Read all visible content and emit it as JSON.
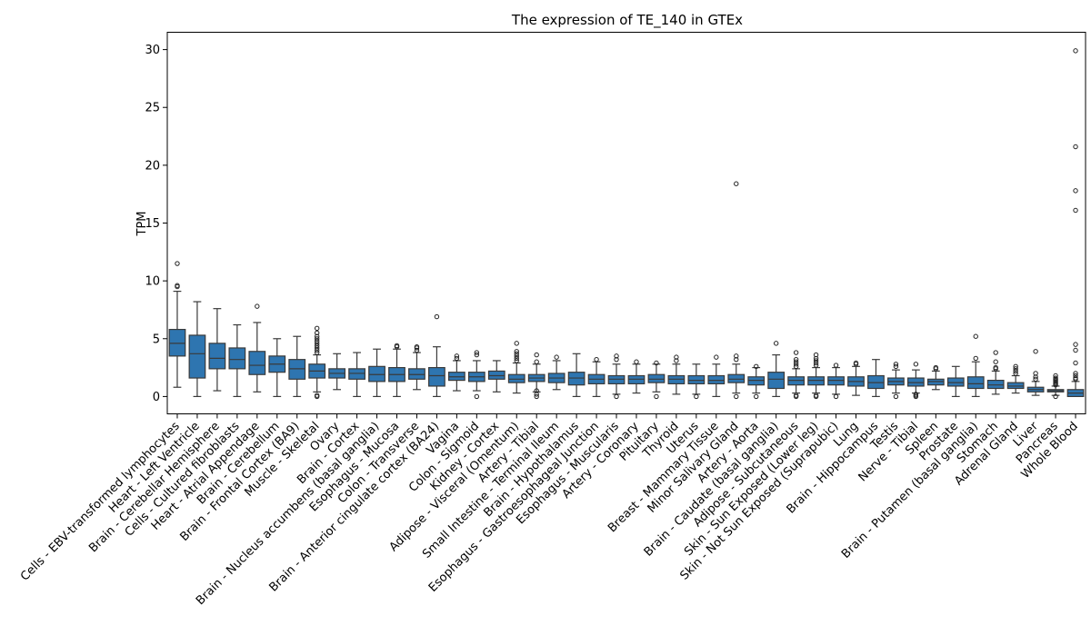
{
  "chart_data": {
    "type": "box",
    "title": "The expression of TE_140 in GTEx",
    "xlabel": "",
    "ylabel": "TPM",
    "ylim": [
      -1.5,
      31.5
    ],
    "yticks": [
      0,
      5,
      10,
      15,
      20,
      25,
      30
    ],
    "box_color": "#2e75b0",
    "grid": false,
    "categories": [
      "Cells - EBV-transformed lymphocytes",
      "Heart - Left Ventricle",
      "Brain - Cerebellar Hemisphere",
      "Cells - Cultured fibroblasts",
      "Heart - Atrial Appendage",
      "Brain - Cerebellum",
      "Brain - Frontal Cortex (BA9)",
      "Muscle - Skeletal",
      "Ovary",
      "Brain - Cortex",
      "Brain - Nucleus accumbens (basal ganglia)",
      "Esophagus - Mucosa",
      "Colon - Transverse",
      "Brain - Anterior cingulate cortex (BA24)",
      "Vagina",
      "Colon - Sigmoid",
      "Kidney - Cortex",
      "Adipose - Visceral (Omentum)",
      "Artery - Tibial",
      "Small Intestine - Terminal Ileum",
      "Brain - Hypothalamus",
      "Esophagus - Gastroesophageal Junction",
      "Esophagus - Muscularis",
      "Artery - Coronary",
      "Pituitary",
      "Thyroid",
      "Uterus",
      "Breast - Mammary Tissue",
      "Minor Salivary Gland",
      "Artery - Aorta",
      "Brain - Caudate (basal ganglia)",
      "Adipose - Subcutaneous",
      "Skin - Sun Exposed (Lower leg)",
      "Skin - Not Sun Exposed (Suprapubic)",
      "Lung",
      "Brain - Hippocampus",
      "Testis",
      "Nerve - Tibial",
      "Spleen",
      "Prostate",
      "Brain - Putamen (basal ganglia)",
      "Stomach",
      "Adrenal Gland",
      "Liver",
      "Pancreas",
      "Whole Blood"
    ],
    "boxes": [
      {
        "low": 0.8,
        "q1": 3.5,
        "median": 4.6,
        "q3": 5.8,
        "high": 9.1,
        "outliers": [
          9.5,
          9.6,
          11.5
        ]
      },
      {
        "low": 0.0,
        "q1": 1.6,
        "median": 3.7,
        "q3": 5.3,
        "high": 8.2,
        "outliers": []
      },
      {
        "low": 0.5,
        "q1": 2.4,
        "median": 3.3,
        "q3": 4.6,
        "high": 7.6,
        "outliers": []
      },
      {
        "low": 0.0,
        "q1": 2.4,
        "median": 3.2,
        "q3": 4.2,
        "high": 6.2,
        "outliers": []
      },
      {
        "low": 0.4,
        "q1": 1.9,
        "median": 2.7,
        "q3": 3.9,
        "high": 6.4,
        "outliers": [
          7.8
        ]
      },
      {
        "low": 0.0,
        "q1": 2.1,
        "median": 2.8,
        "q3": 3.5,
        "high": 5.0,
        "outliers": []
      },
      {
        "low": 0.0,
        "q1": 1.5,
        "median": 2.4,
        "q3": 3.2,
        "high": 5.2,
        "outliers": []
      },
      {
        "low": 0.4,
        "q1": 1.6,
        "median": 2.2,
        "q3": 2.8,
        "high": 3.6,
        "outliers": [
          0.0,
          0.1,
          3.8,
          4.0,
          4.2,
          4.4,
          4.6,
          4.8,
          5.0,
          5.2,
          5.5,
          5.9
        ]
      },
      {
        "low": 0.6,
        "q1": 1.6,
        "median": 2.0,
        "q3": 2.4,
        "high": 3.7,
        "outliers": []
      },
      {
        "low": 0.0,
        "q1": 1.5,
        "median": 2.0,
        "q3": 2.4,
        "high": 3.8,
        "outliers": []
      },
      {
        "low": 0.0,
        "q1": 1.3,
        "median": 1.9,
        "q3": 2.6,
        "high": 4.1,
        "outliers": []
      },
      {
        "low": 0.0,
        "q1": 1.3,
        "median": 1.9,
        "q3": 2.5,
        "high": 4.1,
        "outliers": [
          4.3,
          4.4
        ]
      },
      {
        "low": 0.6,
        "q1": 1.5,
        "median": 1.9,
        "q3": 2.4,
        "high": 3.8,
        "outliers": [
          4.0,
          4.2,
          4.3
        ]
      },
      {
        "low": 0.0,
        "q1": 0.9,
        "median": 1.8,
        "q3": 2.5,
        "high": 4.3,
        "outliers": [
          6.9
        ]
      },
      {
        "low": 0.5,
        "q1": 1.4,
        "median": 1.7,
        "q3": 2.1,
        "high": 3.1,
        "outliers": [
          3.3,
          3.5
        ]
      },
      {
        "low": 0.5,
        "q1": 1.3,
        "median": 1.7,
        "q3": 2.1,
        "high": 3.1,
        "outliers": [
          0.0,
          3.6,
          3.8
        ]
      },
      {
        "low": 0.4,
        "q1": 1.5,
        "median": 1.8,
        "q3": 2.2,
        "high": 3.1,
        "outliers": []
      },
      {
        "low": 0.3,
        "q1": 1.2,
        "median": 1.5,
        "q3": 1.9,
        "high": 2.9,
        "outliers": [
          3.1,
          3.3,
          3.5,
          3.7,
          3.9,
          4.6
        ]
      },
      {
        "low": 0.4,
        "q1": 1.3,
        "median": 1.6,
        "q3": 1.9,
        "high": 2.8,
        "outliers": [
          0.0,
          0.2,
          0.5,
          3.0,
          3.6
        ]
      },
      {
        "low": 0.6,
        "q1": 1.2,
        "median": 1.6,
        "q3": 2.0,
        "high": 3.1,
        "outliers": [
          3.4
        ]
      },
      {
        "low": 0.0,
        "q1": 1.0,
        "median": 1.6,
        "q3": 2.1,
        "high": 3.7,
        "outliers": []
      },
      {
        "low": 0.0,
        "q1": 1.1,
        "median": 1.5,
        "q3": 1.9,
        "high": 3.0,
        "outliers": [
          3.2
        ]
      },
      {
        "low": 0.2,
        "q1": 1.1,
        "median": 1.5,
        "q3": 1.8,
        "high": 2.8,
        "outliers": [
          0.0,
          3.2,
          3.5
        ]
      },
      {
        "low": 0.3,
        "q1": 1.1,
        "median": 1.5,
        "q3": 1.8,
        "high": 2.8,
        "outliers": [
          3.0
        ]
      },
      {
        "low": 0.4,
        "q1": 1.2,
        "median": 1.5,
        "q3": 1.9,
        "high": 2.8,
        "outliers": [
          0.0,
          2.9
        ]
      },
      {
        "low": 0.2,
        "q1": 1.1,
        "median": 1.5,
        "q3": 1.8,
        "high": 2.8,
        "outliers": [
          3.1,
          3.4
        ]
      },
      {
        "low": 0.2,
        "q1": 1.1,
        "median": 1.4,
        "q3": 1.8,
        "high": 2.8,
        "outliers": [
          0.0
        ]
      },
      {
        "low": 0.0,
        "q1": 1.1,
        "median": 1.4,
        "q3": 1.8,
        "high": 2.8,
        "outliers": [
          3.4
        ]
      },
      {
        "low": 0.3,
        "q1": 1.2,
        "median": 1.5,
        "q3": 1.9,
        "high": 2.8,
        "outliers": [
          0.0,
          3.2,
          3.5,
          18.4
        ]
      },
      {
        "low": 0.3,
        "q1": 1.0,
        "median": 1.4,
        "q3": 1.7,
        "high": 2.5,
        "outliers": [
          0.0,
          2.6
        ]
      },
      {
        "low": 0.0,
        "q1": 0.7,
        "median": 1.5,
        "q3": 2.1,
        "high": 3.6,
        "outliers": [
          4.6
        ]
      },
      {
        "low": 0.3,
        "q1": 1.0,
        "median": 1.4,
        "q3": 1.7,
        "high": 2.4,
        "outliers": [
          0.0,
          0.1,
          2.6,
          2.8,
          3.0,
          3.2,
          3.8
        ]
      },
      {
        "low": 0.3,
        "q1": 1.0,
        "median": 1.4,
        "q3": 1.7,
        "high": 2.5,
        "outliers": [
          0.0,
          0.1,
          2.7,
          2.9,
          3.1,
          3.3,
          3.6
        ]
      },
      {
        "low": 0.2,
        "q1": 1.0,
        "median": 1.4,
        "q3": 1.7,
        "high": 2.5,
        "outliers": [
          0.0,
          2.7
        ]
      },
      {
        "low": 0.1,
        "q1": 0.9,
        "median": 1.3,
        "q3": 1.7,
        "high": 2.6,
        "outliers": [
          2.8,
          2.9
        ]
      },
      {
        "low": 0.0,
        "q1": 0.7,
        "median": 1.2,
        "q3": 1.8,
        "high": 3.2,
        "outliers": []
      },
      {
        "low": 0.3,
        "q1": 1.0,
        "median": 1.3,
        "q3": 1.6,
        "high": 2.3,
        "outliers": [
          0.0,
          2.6,
          2.8
        ]
      },
      {
        "low": 0.3,
        "q1": 0.9,
        "median": 1.2,
        "q3": 1.6,
        "high": 2.3,
        "outliers": [
          0.0,
          0.1,
          0.2,
          2.8
        ]
      },
      {
        "low": 0.6,
        "q1": 1.0,
        "median": 1.3,
        "q3": 1.5,
        "high": 2.2,
        "outliers": [
          2.4,
          2.5
        ]
      },
      {
        "low": 0.0,
        "q1": 0.9,
        "median": 1.2,
        "q3": 1.6,
        "high": 2.6,
        "outliers": []
      },
      {
        "low": 0.0,
        "q1": 0.7,
        "median": 1.1,
        "q3": 1.7,
        "high": 3.0,
        "outliers": [
          3.3,
          5.2
        ]
      },
      {
        "low": 0.2,
        "q1": 0.7,
        "median": 1.0,
        "q3": 1.4,
        "high": 2.2,
        "outliers": [
          2.4,
          2.5,
          3.0,
          3.8
        ]
      },
      {
        "low": 0.3,
        "q1": 0.7,
        "median": 0.9,
        "q3": 1.2,
        "high": 1.8,
        "outliers": [
          2.0,
          2.2,
          2.4,
          2.6
        ]
      },
      {
        "low": 0.1,
        "q1": 0.4,
        "median": 0.6,
        "q3": 0.8,
        "high": 1.3,
        "outliers": [
          1.5,
          1.7,
          2.0,
          3.9
        ]
      },
      {
        "low": 0.1,
        "q1": 0.4,
        "median": 0.5,
        "q3": 0.6,
        "high": 0.9,
        "outliers": [
          0.0,
          1.0,
          1.1,
          1.2,
          1.3,
          1.4,
          1.5,
          1.6,
          1.8
        ]
      },
      {
        "low": 0.0,
        "q1": 0.0,
        "median": 0.3,
        "q3": 0.6,
        "high": 1.3,
        "outliers": [
          1.5,
          1.6,
          1.8,
          2.0,
          2.9,
          4.0,
          4.5,
          16.1,
          17.8,
          21.6,
          29.9
        ]
      }
    ]
  }
}
